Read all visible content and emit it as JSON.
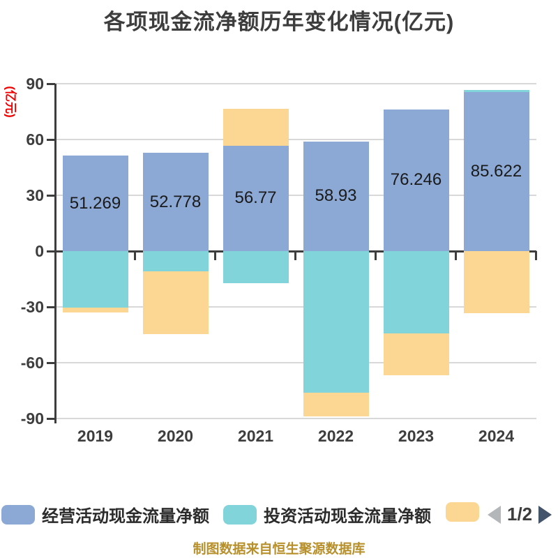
{
  "title": "各项现金流净额历年变化情况(亿元)",
  "y_axis_unit_label": "(亿元)",
  "caption": "制图数据来自恒生聚源数据库",
  "legend": {
    "items": [
      {
        "label": "经营活动现金流量净额",
        "color": "#8CA9D6"
      },
      {
        "label": "投资活动现金流量净额",
        "color": "#82D4DB"
      },
      {
        "label": "",
        "color": "#FCD693"
      }
    ],
    "pagination": {
      "current": "1/2",
      "prev_color": "#B3B7BA",
      "next_color": "#44546A"
    }
  },
  "chart_data": {
    "type": "bar",
    "stacked": true,
    "title": "各项现金流净额历年变化情况(亿元)",
    "xlabel": "",
    "ylabel": "(亿元)",
    "categories": [
      "2019",
      "2020",
      "2021",
      "2022",
      "2023",
      "2024"
    ],
    "series": [
      {
        "name": "经营活动现金流量净额",
        "color": "#8CA9D6",
        "labels_shown": true,
        "values": [
          51.269,
          52.778,
          56.77,
          58.93,
          76.246,
          85.622
        ]
      },
      {
        "name": "投资活动现金流量净额",
        "color": "#82D4DB",
        "labels_shown": false,
        "values": [
          -30.5,
          -11,
          -17.3,
          -76.1,
          -44.3,
          1.0
        ]
      },
      {
        "name": "",
        "color": "#FCD693",
        "labels_shown": false,
        "values": [
          -2.6,
          -33.6,
          19.7,
          -12.8,
          -22.5,
          -33.4
        ]
      }
    ],
    "ylim": [
      -90,
      90
    ],
    "ytick_step": 30,
    "grid": true,
    "legend_position": "bottom"
  },
  "colors": {
    "background": "#FFFFFF",
    "axis": "#3D3D3D",
    "grid": "#D8D8D8",
    "text": "#3D3D3D",
    "value_label": "#1A1A1A",
    "unit_label_red": "#EE0000",
    "caption_gold": "#B7902C"
  }
}
